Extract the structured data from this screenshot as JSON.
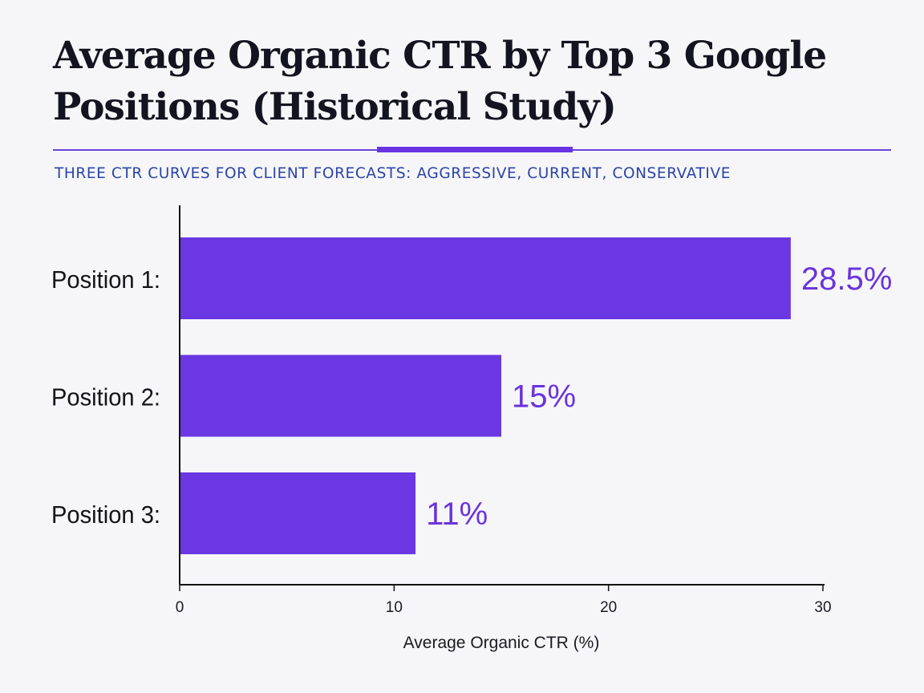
{
  "colors": {
    "bar": "#6b37e3",
    "value_label": "#6a34dc",
    "accent_rule": "#6a33e0",
    "subtitle": "#2b44a6",
    "background": "#f6f6f9"
  },
  "chart_data": {
    "type": "bar",
    "orientation": "horizontal",
    "title": "Average Organic CTR by Top 3 Google Positions (Historical Study)",
    "subtitle": "THREE CTR CURVES FOR CLIENT FORECASTS:  AGGRESSIVE, CURRENT, CONSERVATIVE",
    "categories": [
      "Position 1:",
      "Position 2:",
      "Position 3:"
    ],
    "values": [
      28.5,
      15,
      11
    ],
    "value_labels": [
      "28.5%",
      "15%",
      "11%"
    ],
    "xlabel": "Average Organic CTR (%)",
    "ylabel": "",
    "xlim": [
      0,
      30
    ],
    "xticks": [
      0,
      10,
      20,
      30
    ],
    "grid": false,
    "legend": "none"
  }
}
